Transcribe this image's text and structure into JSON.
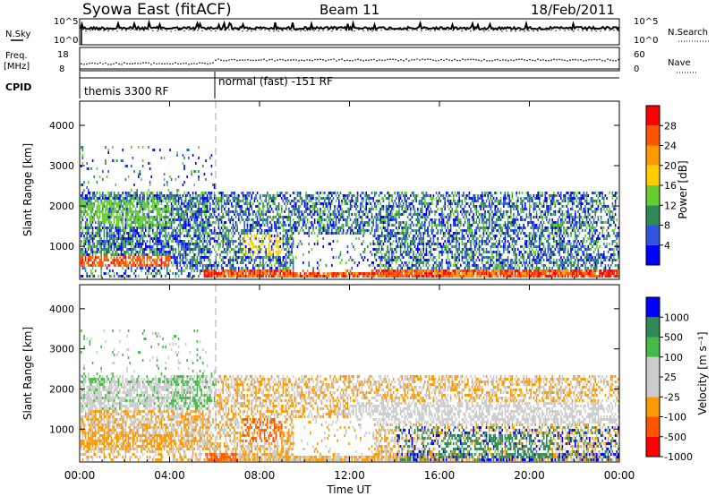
{
  "header": {
    "station": "Syowa East (fitACF)",
    "beam": "Beam 11",
    "date": "18/Feb/2011"
  },
  "top_panels": {
    "nsky_label": "N.Sky",
    "nsky_ticks": [
      "10^5",
      "10^0"
    ],
    "nsearch_label": "N.Search",
    "nsearch_ticks": [
      "10^5",
      "10^0"
    ],
    "freq_label": "Freq.",
    "freq_unit": "[MHz]",
    "freq_ticks": [
      "18",
      "8"
    ],
    "nave_label": "Nave",
    "nave_ticks": [
      "60",
      "0"
    ],
    "cpid_label": "CPID",
    "cpid_segments": [
      {
        "label": "themis 3300 RF",
        "start_hour": 0
      },
      {
        "label": "normal (fast) -151 RF",
        "start_hour": 6
      }
    ]
  },
  "colors": {
    "power_scale": [
      "#0000ff",
      "#3355dd",
      "#2e8b57",
      "#66cc33",
      "#ffcc00",
      "#ff9900",
      "#ff5500",
      "#ff0000"
    ],
    "velocity_scale": [
      "#ff0000",
      "#ff5500",
      "#ff9900",
      "#cccccc",
      "#cccccc",
      "#44bb44",
      "#2e8b57",
      "#0000ff"
    ],
    "mode_change_line": "#aaaaaa"
  },
  "chart_data": [
    {
      "type": "heatmap",
      "name": "power",
      "ylabel": "Slant Range [km]",
      "ylim": [
        180,
        4600
      ],
      "yticks": [
        1000,
        2000,
        3000,
        4000
      ],
      "xlim": [
        0,
        24
      ],
      "colorbar": {
        "label": "Power [dB]",
        "range": [
          0,
          32
        ],
        "ticks": [
          "4",
          "8",
          "12",
          "16",
          "20",
          "24",
          "28"
        ]
      },
      "dominant_levels": [
        {
          "t0": 0,
          "t1": 4,
          "r0": 1500,
          "r1": 2200,
          "level": 3
        },
        {
          "t0": 0,
          "t1": 4,
          "r0": 550,
          "r1": 800,
          "level": 6
        },
        {
          "t0": 5.5,
          "t1": 6.3,
          "r0": 200,
          "r1": 420,
          "level": 7
        },
        {
          "t0": 7.2,
          "t1": 9,
          "r0": 800,
          "r1": 1300,
          "level": 4
        },
        {
          "t0": 13.5,
          "t1": 15,
          "r0": 200,
          "r1": 420,
          "level": 6
        },
        {
          "t0": 16.5,
          "t1": 17.5,
          "r0": 200,
          "r1": 420,
          "level": 5
        },
        {
          "t0": 23,
          "t1": 24,
          "r0": 200,
          "r1": 450,
          "level": 7
        }
      ]
    },
    {
      "type": "heatmap",
      "name": "velocity",
      "ylabel": "Slant Range [km]",
      "ylim": [
        180,
        4600
      ],
      "yticks": [
        1000,
        2000,
        3000,
        4000
      ],
      "xlim": [
        0,
        24
      ],
      "xlabel": "Time UT",
      "xticks": [
        "00:00",
        "04:00",
        "08:00",
        "12:00",
        "16:00",
        "20:00",
        "00:00"
      ],
      "colorbar": {
        "label": "Velocity [m s⁻¹]",
        "ticks": [
          "1000",
          "500",
          "100",
          "25",
          "-25",
          "-100",
          "-500",
          "-1000"
        ]
      },
      "dominant_levels": [
        {
          "t0": 0,
          "t1": 4,
          "r0": 1500,
          "r1": 2200,
          "level": 4
        },
        {
          "t0": 0,
          "t1": 4,
          "r0": 550,
          "r1": 900,
          "level": 2
        },
        {
          "t0": 5.5,
          "t1": 7,
          "r0": 200,
          "r1": 450,
          "level": 1
        },
        {
          "t0": 7.2,
          "t1": 9,
          "r0": 700,
          "r1": 1300,
          "level": 1
        },
        {
          "t0": 13,
          "t1": 20,
          "r0": 1300,
          "r1": 1550,
          "level": 3
        },
        {
          "t0": 16,
          "t1": 21,
          "r0": 300,
          "r1": 900,
          "level": 6
        }
      ]
    }
  ]
}
